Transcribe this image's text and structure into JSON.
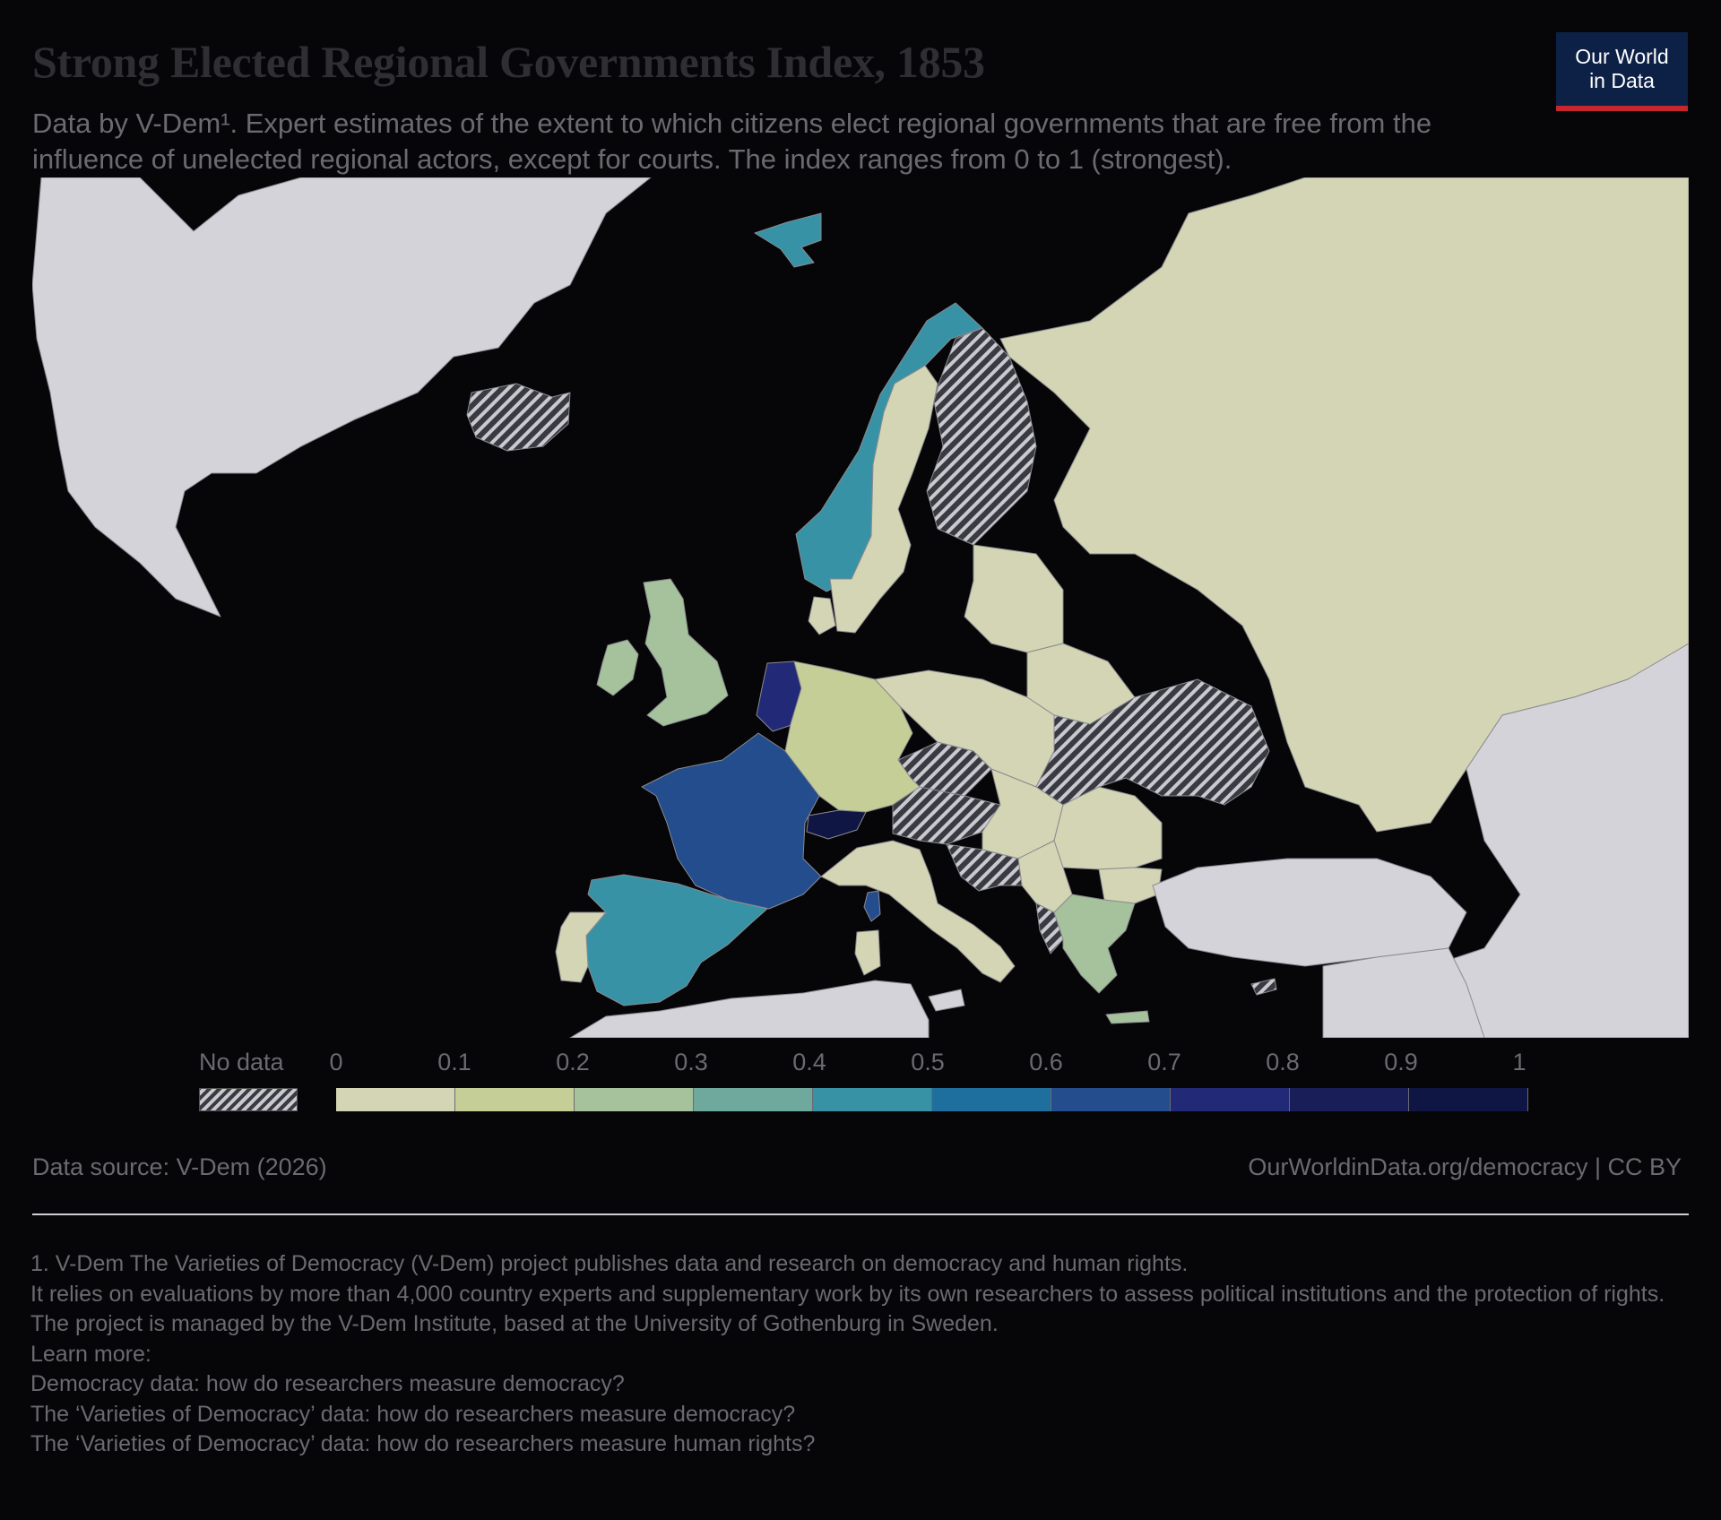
{
  "header": {
    "title": "Strong Elected Regional Governments Index, 1853",
    "subtitle": "Data by V-Dem¹. Expert estimates of the extent to which citizens elect regional governments that are free from the influence of unelected regional actors, except for courts. The index ranges from 0 to 1 (strongest).",
    "logo_line1": "Our World",
    "logo_line2": "in Data"
  },
  "map": {
    "region": "Europe",
    "year": "1853",
    "colors": {
      "ocean": "#060608",
      "no_data_land": "#d3d3d9",
      "hatch_light": "#c9c9cf",
      "hatch_dark": "#3a3a42"
    },
    "countries": [
      {
        "name": "Greenland",
        "value": null,
        "status": "not-in-dataset"
      },
      {
        "name": "Iceland",
        "value": null,
        "status": "no-data"
      },
      {
        "name": "Svalbard",
        "value": 0.43
      },
      {
        "name": "Norway",
        "value": 0.43
      },
      {
        "name": "Sweden",
        "value": 0.05
      },
      {
        "name": "Finland",
        "value": null,
        "status": "no-data"
      },
      {
        "name": "Russia",
        "value": 0.05
      },
      {
        "name": "Denmark",
        "value": 0.08
      },
      {
        "name": "United Kingdom",
        "value": 0.24
      },
      {
        "name": "Ireland",
        "value": 0.24
      },
      {
        "name": "Netherlands",
        "value": 0.75
      },
      {
        "name": "Germany",
        "value": 0.13
      },
      {
        "name": "France",
        "value": 0.64
      },
      {
        "name": "Switzerland",
        "value": 0.95
      },
      {
        "name": "Spain",
        "value": 0.43
      },
      {
        "name": "Portugal",
        "value": 0.05
      },
      {
        "name": "Italy",
        "value": 0.05
      },
      {
        "name": "Corsica",
        "value": 0.64
      },
      {
        "name": "Sardinia",
        "value": 0.05
      },
      {
        "name": "Poland",
        "value": 0.05
      },
      {
        "name": "Czechia",
        "value": null,
        "status": "no-data"
      },
      {
        "name": "Austria",
        "value": null,
        "status": "no-data"
      },
      {
        "name": "Hungary",
        "value": 0.05
      },
      {
        "name": "Ukraine",
        "value": null,
        "status": "no-data"
      },
      {
        "name": "Romania",
        "value": 0.05
      },
      {
        "name": "Bulgaria",
        "value": 0.05
      },
      {
        "name": "Serbia",
        "value": 0.05
      },
      {
        "name": "Croatia",
        "value": null,
        "status": "no-data"
      },
      {
        "name": "Albania",
        "value": null,
        "status": "no-data"
      },
      {
        "name": "Greece",
        "value": 0.24
      },
      {
        "name": "Crete",
        "value": 0.24
      },
      {
        "name": "Cyprus",
        "value": null,
        "status": "no-data"
      },
      {
        "name": "Baltic states",
        "value": 0.05
      },
      {
        "name": "Belarus",
        "value": 0.05
      },
      {
        "name": "Turkey",
        "value": null,
        "status": "not-in-dataset"
      },
      {
        "name": "North Africa",
        "value": null,
        "status": "not-in-dataset"
      },
      {
        "name": "Kazakhstan",
        "value": null,
        "status": "not-in-dataset"
      }
    ]
  },
  "legend": {
    "no_data_label": "No data",
    "ticks": [
      "0",
      "0.1",
      "0.2",
      "0.3",
      "0.4",
      "0.5",
      "0.6",
      "0.7",
      "0.8",
      "0.9",
      "1"
    ],
    "bins": [
      {
        "from": 0.0,
        "to": 0.1,
        "color": "#d4d5b4"
      },
      {
        "from": 0.1,
        "to": 0.2,
        "color": "#c6ce97"
      },
      {
        "from": 0.2,
        "to": 0.3,
        "color": "#a5c29c"
      },
      {
        "from": 0.3,
        "to": 0.4,
        "color": "#6fa89c"
      },
      {
        "from": 0.4,
        "to": 0.5,
        "color": "#3892a6"
      },
      {
        "from": 0.5,
        "to": 0.6,
        "color": "#1e6f9e"
      },
      {
        "from": 0.6,
        "to": 0.7,
        "color": "#234d8c"
      },
      {
        "from": 0.7,
        "to": 0.8,
        "color": "#222a77"
      },
      {
        "from": 0.8,
        "to": 0.9,
        "color": "#1a1e58"
      },
      {
        "from": 0.9,
        "to": 1.0,
        "color": "#101643"
      }
    ]
  },
  "footer": {
    "source": "Data source: V-Dem (2026)",
    "url": "OurWorldinData.org/democracy | CC BY",
    "footnotes": [
      "1. V-Dem The Varieties of Democracy (V-Dem) project publishes data and research on democracy and human rights.",
      "It relies on evaluations by more than 4,000 country experts and supplementary work by its own researchers to assess political institutions and the protection of rights.",
      "The project is managed by the V-Dem Institute, based at the University of Gothenburg in Sweden.",
      "Learn more:",
      "Democracy data: how do researchers measure democracy?",
      "The ‘Varieties of Democracy’ data: how do researchers measure democracy?",
      "The ‘Varieties of Democracy’ data: how do researchers measure human rights?"
    ]
  }
}
